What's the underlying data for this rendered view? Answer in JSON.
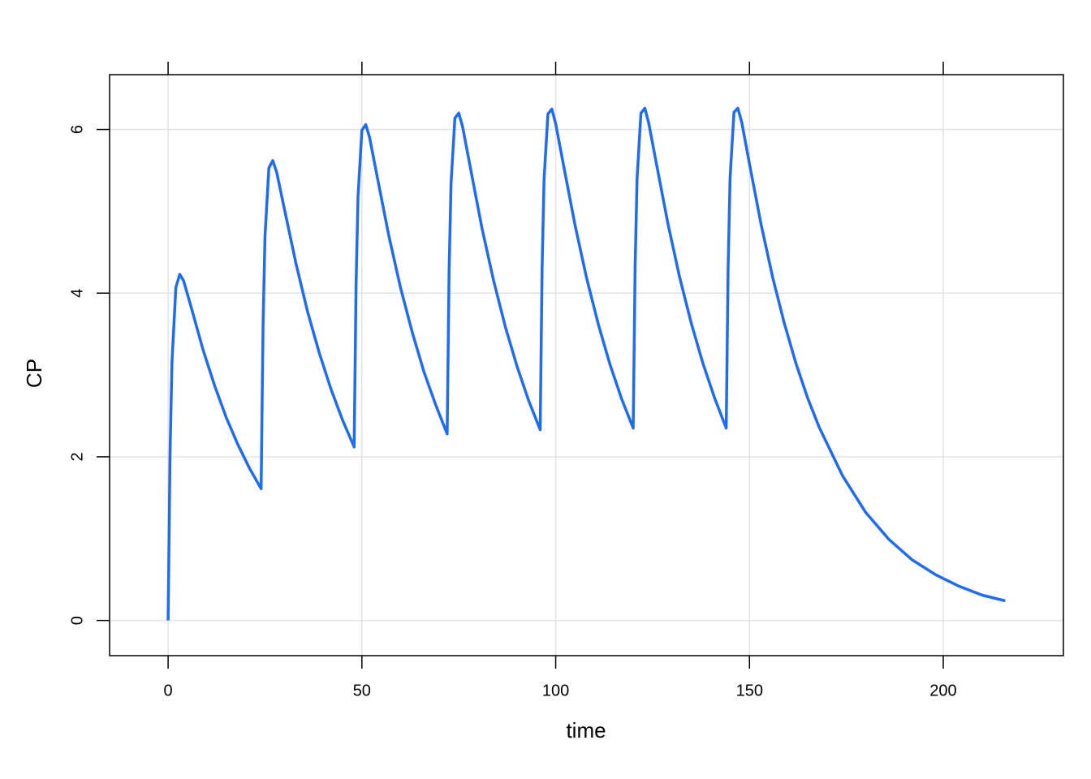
{
  "chart_data": {
    "type": "line",
    "x_label": "time",
    "y_label": "CP",
    "x": [
      0,
      0.5,
      1,
      2,
      3,
      4,
      6,
      9,
      12,
      15,
      18,
      21,
      24,
      24.5,
      25,
      26,
      27,
      28,
      30,
      33,
      36,
      39,
      42,
      45,
      48,
      48.5,
      49,
      50,
      51,
      52,
      54,
      57,
      60,
      63,
      66,
      69,
      72,
      72.5,
      73,
      74,
      75,
      76,
      78,
      81,
      84,
      87,
      90,
      93,
      96,
      96.5,
      97,
      98,
      99,
      100,
      102,
      105,
      108,
      111,
      114,
      117,
      120,
      120.5,
      121,
      122,
      123,
      124,
      126,
      129,
      132,
      135,
      138,
      141,
      144,
      144.5,
      145,
      146,
      147,
      148,
      150,
      153,
      156,
      159,
      162,
      165,
      168,
      174,
      180,
      186,
      192,
      198,
      204,
      210,
      216
    ],
    "series": [
      {
        "name": "CP",
        "color": "#1f6cf0",
        "values": [
          0,
          2.04,
          3.16,
          4.07,
          4.23,
          4.15,
          3.82,
          3.31,
          2.87,
          2.48,
          2.15,
          1.86,
          1.61,
          3.61,
          4.7,
          5.53,
          5.62,
          5.48,
          5.03,
          4.36,
          3.77,
          3.27,
          2.83,
          2.45,
          2.12,
          4.11,
          5.18,
          5.99,
          6.06,
          5.9,
          5.41,
          4.69,
          4.06,
          3.52,
          3.04,
          2.64,
          2.28,
          4.27,
          5.34,
          6.14,
          6.2,
          6.03,
          5.53,
          4.79,
          4.15,
          3.59,
          3.11,
          2.69,
          2.33,
          4.31,
          5.39,
          6.19,
          6.25,
          6.07,
          5.57,
          4.83,
          4.18,
          3.62,
          3.13,
          2.71,
          2.35,
          4.33,
          5.4,
          6.2,
          6.26,
          6.08,
          5.58,
          4.84,
          4.19,
          3.63,
          3.14,
          2.72,
          2.35,
          4.33,
          5.41,
          6.21,
          6.26,
          6.09,
          5.58,
          4.84,
          4.19,
          3.63,
          3.14,
          2.72,
          2.36,
          1.77,
          1.32,
          0.99,
          0.74,
          0.56,
          0.42,
          0.31,
          0.24
        ]
      }
    ],
    "xlim": [
      -15.1,
      231
    ],
    "ylim": [
      -0.43,
      6.67
    ],
    "xticks": [
      0,
      50,
      100,
      150,
      200
    ],
    "yticks": [
      0,
      2,
      4,
      6
    ],
    "grid": true
  }
}
